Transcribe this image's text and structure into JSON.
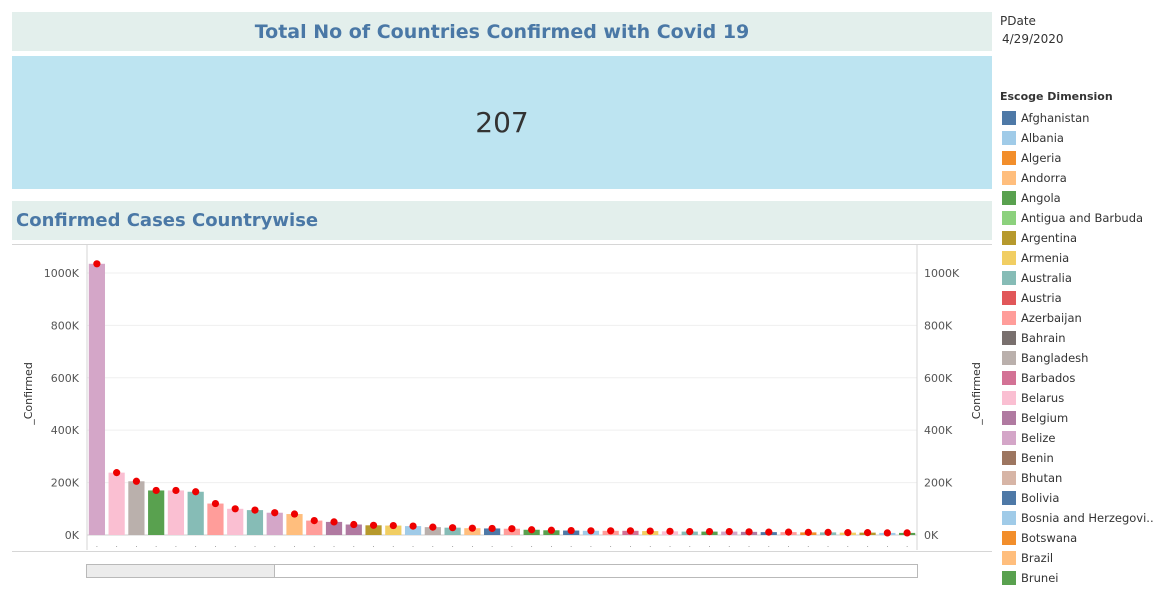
{
  "header": {
    "title": "Total No of Countries Confirmed with Covid 19"
  },
  "kpi": {
    "value": "207"
  },
  "section": {
    "title": "Confirmed Cases  Countrywise"
  },
  "filter": {
    "label": "PDate",
    "value": "4/29/2020"
  },
  "legend": {
    "title": "Escoge Dimension",
    "items": [
      {
        "label": "Afghanistan",
        "color": "#4e79a7"
      },
      {
        "label": "Albania",
        "color": "#a0cbe8"
      },
      {
        "label": "Algeria",
        "color": "#f28e2b"
      },
      {
        "label": "Andorra",
        "color": "#ffbe7d"
      },
      {
        "label": "Angola",
        "color": "#59a14f"
      },
      {
        "label": "Antigua and Barbuda",
        "color": "#8cd17d"
      },
      {
        "label": "Argentina",
        "color": "#b6992d"
      },
      {
        "label": "Armenia",
        "color": "#f1ce63"
      },
      {
        "label": "Australia",
        "color": "#86bcb6"
      },
      {
        "label": "Austria",
        "color": "#e15759"
      },
      {
        "label": "Azerbaijan",
        "color": "#ff9d9a"
      },
      {
        "label": "Bahrain",
        "color": "#79706e"
      },
      {
        "label": "Bangladesh",
        "color": "#bab0ac"
      },
      {
        "label": "Barbados",
        "color": "#d37295"
      },
      {
        "label": "Belarus",
        "color": "#fabfd2"
      },
      {
        "label": "Belgium",
        "color": "#b07aa1"
      },
      {
        "label": "Belize",
        "color": "#d4a6c8"
      },
      {
        "label": "Benin",
        "color": "#9d7660"
      },
      {
        "label": "Bhutan",
        "color": "#d7b5a6"
      },
      {
        "label": "Bolivia",
        "color": "#4e79a7"
      },
      {
        "label": "Bosnia and Herzegovi..",
        "color": "#a0cbe8"
      },
      {
        "label": "Botswana",
        "color": "#f28e2b"
      },
      {
        "label": "Brazil",
        "color": "#ffbe7d"
      },
      {
        "label": "Brunei",
        "color": "#59a14f"
      }
    ]
  },
  "chart_data": {
    "type": "bar",
    "ylabel": "_Confirmed",
    "ylabel_right": "_Confirmed",
    "ylim": [
      0,
      1080000
    ],
    "yticks": [
      0,
      200000,
      400000,
      600000,
      800000,
      1000000
    ],
    "ytick_labels": [
      "0K",
      "200K",
      "400K",
      "600K",
      "800K",
      "1000K"
    ],
    "point_color": "#ee0000",
    "series": [
      {
        "values": [
          1035000,
          238000,
          205000,
          170000,
          170000,
          165000,
          120000,
          100000,
          95000,
          85000,
          80000,
          55000,
          50000,
          40000,
          37000,
          36000,
          34000,
          30000,
          28000,
          26000,
          25000,
          24000,
          20000,
          18000,
          17000,
          16000,
          16000,
          16000,
          15000,
          14000,
          13000,
          13000,
          13000,
          12000,
          11000,
          11000,
          10000,
          10000,
          9000,
          9000,
          8000,
          8000
        ],
        "colors": [
          "#d4a6c8",
          "#fabfd2",
          "#bab0ac",
          "#59a14f",
          "#fabfd2",
          "#86bcb6",
          "#ff9d9a",
          "#fabfd2",
          "#86bcb6",
          "#d4a6c8",
          "#ffbe7d",
          "#ff9d9a",
          "#b07aa1",
          "#b07aa1",
          "#b6992d",
          "#f1ce63",
          "#a0cbe8",
          "#bab0ac",
          "#86bcb6",
          "#ffbe7d",
          "#4e79a7",
          "#ff9d9a",
          "#59a14f",
          "#59a14f",
          "#4e79a7",
          "#a0cbe8",
          "#ff9d9a",
          "#d37295",
          "#f1ce63",
          "#fabfd2",
          "#86bcb6",
          "#59a14f",
          "#d4a6c8",
          "#b07aa1",
          "#4e79a7",
          "#ff9d9a",
          "#f28e2b",
          "#86bcb6",
          "#f1ce63",
          "#b6992d",
          "#a0cbe8",
          "#59a14f"
        ]
      },
      {
        "values": [
          1035000,
          238000,
          205000,
          170000,
          170000,
          165000,
          120000,
          100000,
          95000,
          85000,
          80000,
          55000,
          50000,
          40000,
          37000,
          36000,
          34000,
          30000,
          28000,
          26000,
          25000,
          24000,
          20000,
          18000,
          17000,
          16000,
          16000,
          16000,
          15000,
          14000,
          13000,
          13000,
          13000,
          12000,
          11000,
          11000,
          10000,
          10000,
          9000,
          9000,
          8000,
          8000
        ]
      }
    ],
    "grid": true
  }
}
